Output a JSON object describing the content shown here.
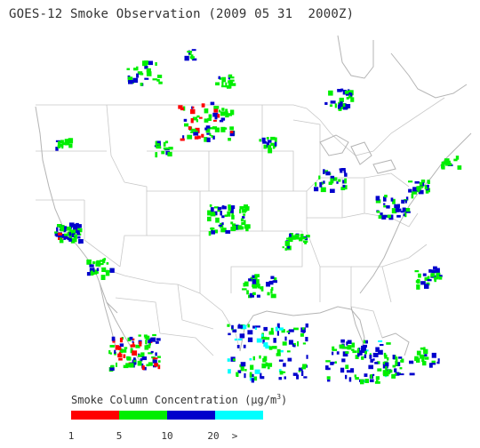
{
  "title": "GOES-12 Smoke Observation (2009 05 31  2000Z)",
  "legend": {
    "title_prefix": "Smoke Column Concentration (",
    "title_unit_mu": "µ",
    "title_unit_rest": "g/m",
    "title_sup": "3",
    "title_suffix": ")",
    "bins": [
      {
        "label": "1",
        "color": "#ff0000"
      },
      {
        "label": "5",
        "color": "#00ee00"
      },
      {
        "label": "10",
        "color": "#0000cc"
      },
      {
        "label": "20",
        "color": "#00ffff"
      }
    ],
    "overflow_label": ">"
  },
  "colors": {
    "boundary": "#c8c8c8",
    "coast": "#b4b4b4",
    "text": "#333333"
  }
}
